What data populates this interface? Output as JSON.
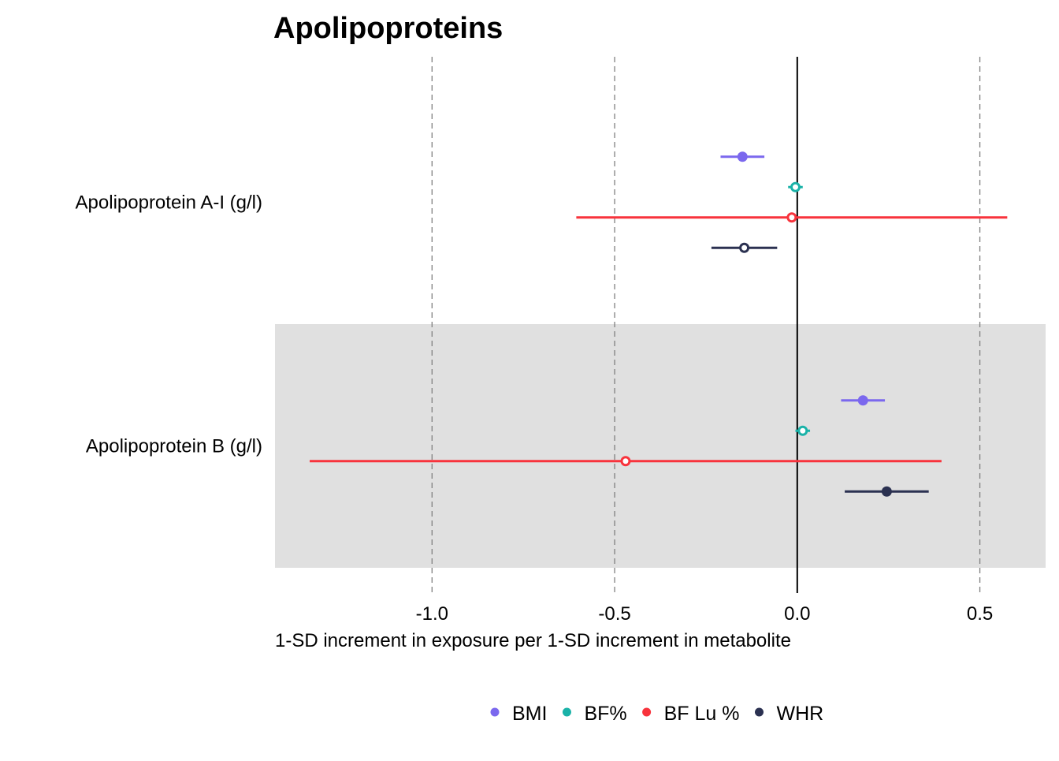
{
  "chart_data": {
    "type": "forest",
    "title": "Apolipoproteins",
    "xlabel": "1-SD increment in exposure per 1-SD increment in metabolite",
    "ylabel": "",
    "xlim": [
      -1.43,
      0.68
    ],
    "xticks": [
      -1.0,
      -0.5,
      0.0,
      0.5
    ],
    "xtick_labels": [
      "-1.0",
      "-0.5",
      "0.0",
      "0.5"
    ],
    "reference_line": 0,
    "gridlines": "dashed vertical at ticks",
    "legend_position": "bottom",
    "categories": [
      "Apolipoprotein A-I (g/l)",
      "Apolipoprotein B (g/l)"
    ],
    "shaded_categories": [
      "Apolipoprotein B (g/l)"
    ],
    "series": [
      {
        "name": "BMI",
        "color": "#7b68ee",
        "points": [
          {
            "category": "Apolipoprotein A-I (g/l)",
            "estimate": -0.15,
            "lower": -0.21,
            "upper": -0.09,
            "significant": true
          },
          {
            "category": "Apolipoprotein B (g/l)",
            "estimate": 0.18,
            "lower": 0.12,
            "upper": 0.24,
            "significant": true
          }
        ]
      },
      {
        "name": "BF%",
        "color": "#1ab2a8",
        "points": [
          {
            "category": "Apolipoprotein A-I (g/l)",
            "estimate": -0.005,
            "lower": -0.025,
            "upper": 0.015,
            "significant": false
          },
          {
            "category": "Apolipoprotein B (g/l)",
            "estimate": 0.015,
            "lower": -0.005,
            "upper": 0.035,
            "significant": false
          }
        ]
      },
      {
        "name": "BF Lu %",
        "color": "#f8333c",
        "points": [
          {
            "category": "Apolipoprotein A-I (g/l)",
            "estimate": -0.015,
            "lower": -0.605,
            "upper": 0.575,
            "significant": false
          },
          {
            "category": "Apolipoprotein B (g/l)",
            "estimate": -0.47,
            "lower": -1.335,
            "upper": 0.395,
            "significant": false
          }
        ]
      },
      {
        "name": "WHR",
        "color": "#2b3151",
        "points": [
          {
            "category": "Apolipoprotein A-I (g/l)",
            "estimate": -0.145,
            "lower": -0.235,
            "upper": -0.055,
            "significant": false
          },
          {
            "category": "Apolipoprotein B (g/l)",
            "estimate": 0.245,
            "lower": 0.13,
            "upper": 0.36,
            "significant": true
          }
        ]
      }
    ]
  }
}
